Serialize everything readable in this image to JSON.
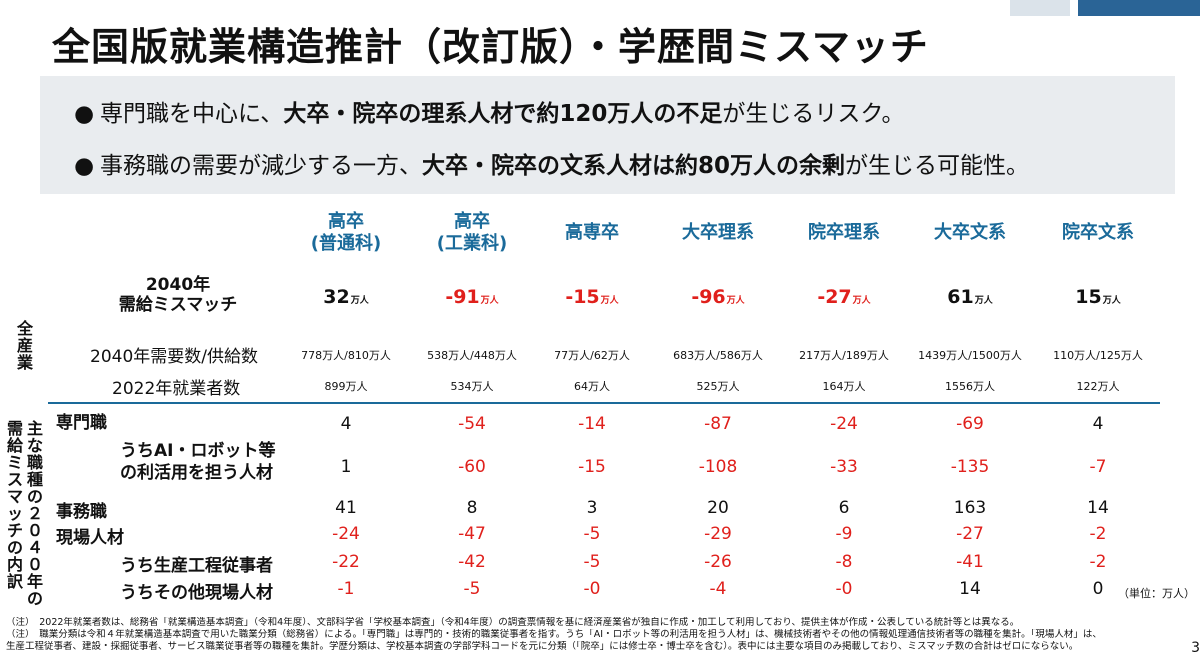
{
  "title": "全国版就業構造推計（改訂版）・学歴間ミスマッチ",
  "summary": {
    "bullet1": {
      "pre": "専門職を中心に、",
      "bold": "大卒・院卒の理系人材で約120万人の不足",
      "post": "が生じるリスク。"
    },
    "bullet2": {
      "pre": "事務職の需要が減少する一方、",
      "bold": "大卒・院卒の文系人材は約80万人の余剰",
      "post": "が生じる可能性。"
    }
  },
  "columns": [
    {
      "line1": "高卒",
      "line2": "(普通科)"
    },
    {
      "line1": "高卒",
      "line2": "(工業科)"
    },
    {
      "line1": "高専卒",
      "line2": ""
    },
    {
      "line1": "大卒理系",
      "line2": ""
    },
    {
      "line1": "院卒理系",
      "line2": ""
    },
    {
      "line1": "大卒文系",
      "line2": ""
    },
    {
      "line1": "院卒文系",
      "line2": ""
    }
  ],
  "group_labels": {
    "all_industry": "全産業",
    "breakdown_col1": "需給ミスマッチの内訳",
    "breakdown_col2": "主な職種の２０４０年の"
  },
  "mismatch_label": {
    "line1": "2040年",
    "line2": "需給ミスマッチ"
  },
  "mismatch_unit": "万人",
  "mismatch": [
    "32",
    "-91",
    "-15",
    "-96",
    "-27",
    "61",
    "15"
  ],
  "demand_supply_label": "2040年需要数/供給数",
  "demand_supply": [
    "778万人/810万人",
    "538万人/448万人",
    "77万人/62万人",
    "683万人/586万人",
    "217万人/189万人",
    "1439万人/1500万人",
    "110万人/125万人"
  ],
  "employed_label": "2022年就業者数",
  "employed": [
    "899万人",
    "534万人",
    "64万人",
    "525万人",
    "164万人",
    "1556万人",
    "122万人"
  ],
  "rows": [
    {
      "label": "専門職",
      "values": [
        "4",
        "-54",
        "-14",
        "-87",
        "-24",
        "-69",
        "4"
      ]
    },
    {
      "label1": "うちAI・ロボット等",
      "label2": "の利活用を担う人材",
      "values": [
        "1",
        "-60",
        "-15",
        "-108",
        "-33",
        "-135",
        "-7"
      ]
    },
    {
      "label": "事務職",
      "values": [
        "41",
        "8",
        "3",
        "20",
        "6",
        "163",
        "14"
      ]
    },
    {
      "label": "現場人材",
      "values": [
        "-24",
        "-47",
        "-5",
        "-29",
        "-9",
        "-27",
        "-2"
      ]
    },
    {
      "label": "うち生産工程従事者",
      "values": [
        "-22",
        "-42",
        "-5",
        "-26",
        "-8",
        "-41",
        "-2"
      ]
    },
    {
      "label": "うちその他現場人材",
      "values": [
        "-1",
        "-5",
        "-0",
        "-4",
        "-0",
        "14",
        "0"
      ]
    }
  ],
  "unit_note": "（単位：万人）",
  "notes": [
    "（注）　2022年就業者数は、総務省「就業構造基本調査」（令和4年度）、文部科学省「学校基本調査」（令和4年度）の調査票情報を基に経済産業省が独自に作成・加工して利用しており、提供主体が作成・公表している統計等とは異なる。",
    "（注）　職業分類は令和４年就業構造基本調査で用いた職業分類（総務省）による。「専門職」は専門的・技術的職業従事者を指す。うち「AI・ロボット等の利活用を担う人材」は、機械技術者やその他の情報処理通信技術者等の職種を集計。「現場人材」は、",
    "生産工程従事者、建設・採掘従事者、サービス職業従事者等の職種を集計。学歴分類は、学校基本調査の学部学科コードを元に分類（「院卒」には修士卒・博士卒を含む）。表中には主要な項目のみ掲載しており、ミスマッチ数の合計はゼロにならない。"
  ],
  "page_number": "3",
  "colors": {
    "accent_blue": "#1a6a9a",
    "negative_red": "#e0201c",
    "summary_bg": "#e9ecef"
  }
}
